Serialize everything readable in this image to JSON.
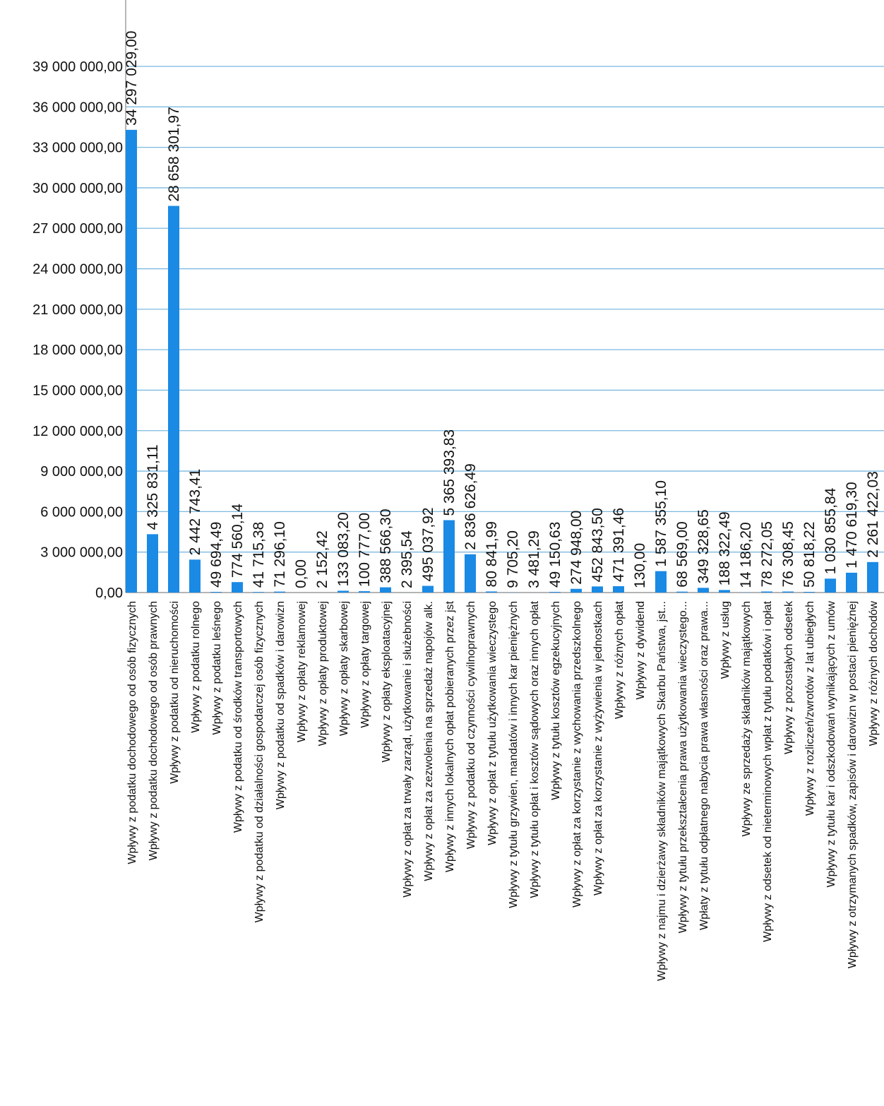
{
  "chart_data": {
    "type": "bar",
    "title": "",
    "xlabel": "",
    "ylabel": "",
    "ylim": [
      0,
      39000000
    ],
    "grid": true,
    "legend": "none",
    "colors": {
      "bar": "#1a8ae5",
      "grid": "#7cb9e0",
      "axis": "#888888"
    },
    "yticks": [
      "39 000 000,00",
      "36 000 000,00",
      "33 000 000,00",
      "30 000 000,00",
      "27 000 000,00",
      "24 000 000,00",
      "21 000 000,00",
      "18 000 000,00",
      "15 000 000,00",
      "12 000 000,00",
      "9 000 000,00",
      "6 000 000,00",
      "3 000 000,00",
      "0,00"
    ],
    "categories": [
      "Wpływy z podatku dochodowego od osób fizycznych",
      "Wpływy z podatku dochodowego od osób prawnych",
      "Wpływy z podatku od nieruchomości",
      "Wpływy z podatku rolnego",
      "Wpływy z podatku leśnego",
      "Wpływy z podatku od środków transportowych",
      "Wpływy z podatku od działalności gospodarczej osób fizycznych",
      "Wpływy z podatku od spadków i darowizn",
      "Wpływy z opłaty reklamowej",
      "Wpływy z opłaty produktowej",
      "Wpływy z opłaty skarbowej",
      "Wpływy z opłaty targowej",
      "Wpływy z opłaty eksploatacyjnej",
      "Wpływy z opłat za trwały zarząd, użytkowanie i służebności",
      "Wpływy z opłat za zezwolenia na sprzedaż napojów alk.",
      "Wpływy z innych lokalnych opłat pobieranych przez jst",
      "Wpływy z podatku od czynności cywilnoprawnych",
      "Wpływy z opłat z tytułu użytkowania wieczystego",
      "Wpływy z tytułu grzywien, mandatów i innych kar pieniężnych",
      "Wpływy z tytułu opłat i kosztów sądowych oraz innych opłat",
      "Wpływy z tytułu kosztów egzekucyjnych",
      "Wpływy z opłat za korzystanie z wychowania przedszkolnego",
      "Wpływy z opłat za korzystanie z wyżywienia w jednostkach",
      "Wpływy z różnych opłat",
      "Wpływy z dywidend",
      "Wpływy z najmu i dzierżawy składników majątkowych Skarbu Państwa, jst...",
      "Wpływy z tytułu przekształcenia prawa użytkowania wieczystego...",
      "Wpłaty z tytułu odpłatnego nabycia prawa własności oraz prawa...",
      "Wpływy z usług",
      "Wpływy ze sprzedaży składników majątkowych",
      "Wpływy z odsetek od nieterminowych wpłat z tytułu podatków i opłat",
      "Wpływy z pozostałych odsetek",
      "Wpływy z rozliczeń/zwrotów z lat ubiegłych",
      "Wpływy z tytułu kar i odszkodowań wynikających z umów",
      "Wpływy z otrzymanych spadków, zapisów i darowizn w postaci pieniężnej",
      "Wpływy z różnych dochodów"
    ],
    "values": [
      34297029.0,
      4325831.11,
      28658301.97,
      2442743.41,
      49694.49,
      774560.14,
      41715.38,
      71296.1,
      0.0,
      2152.42,
      133083.2,
      100777.0,
      388566.3,
      2395.54,
      495037.92,
      5365393.83,
      2836626.49,
      80841.99,
      9705.2,
      3481.29,
      49150.63,
      274948.0,
      452843.5,
      471391.46,
      130.0,
      1587355.1,
      68569.0,
      349328.65,
      188322.49,
      14186.2,
      78272.05,
      76308.45,
      50818.22,
      1030855.84,
      1470619.3,
      2261422.03
    ],
    "data_labels": [
      "34 297 029,00",
      "4 325 831,11",
      "28 658 301,97",
      "2 442 743,41",
      "49 694,49",
      "774 560,14",
      "41 715,38",
      "71 296,10",
      "0,00",
      "2 152,42",
      "133 083,20",
      "100 777,00",
      "388 566,30",
      "2 395,54",
      "495 037,92",
      "5 365 393,83",
      "2 836 626,49",
      "80 841,99",
      "9 705,20",
      "3 481,29",
      "49 150,63",
      "274 948,00",
      "452 843,50",
      "471 391,46",
      "130,00",
      "1 587 355,10",
      "68 569,00",
      "349 328,65",
      "188 322,49",
      "14 186,20",
      "78 272,05",
      "76 308,45",
      "50 818,22",
      "1 030 855,84",
      "1 470 619,30",
      "2 261 422,03"
    ]
  }
}
